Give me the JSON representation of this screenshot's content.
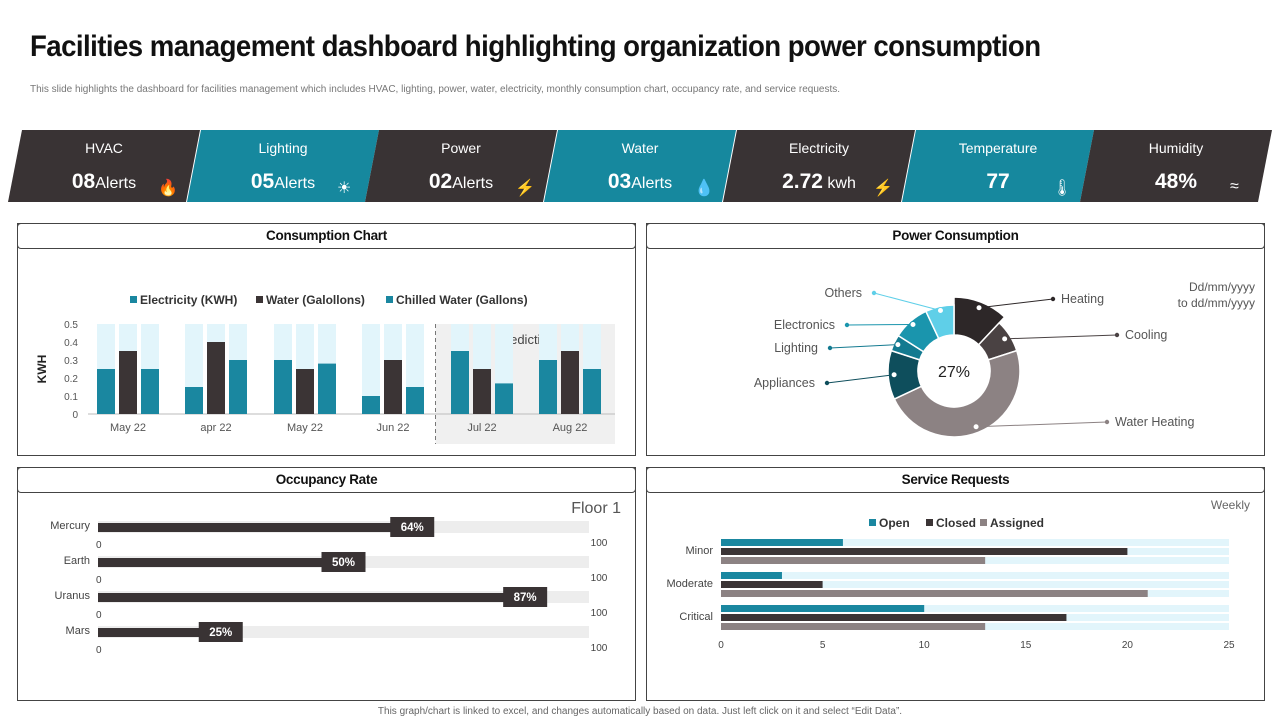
{
  "header": {
    "title": "Facilities management dashboard highlighting organization power consumption",
    "subtitle": "This slide highlights the dashboard for facilities management  which includes HVAC, lighting,  power, water, electricity, monthly consumption chart, occupancy rate, and service requests."
  },
  "kpis": [
    {
      "label": "HVAC",
      "value": "08",
      "unit": "Alerts",
      "icon": "flame-icon",
      "color": "#393334"
    },
    {
      "label": "Lighting",
      "value": "05",
      "unit": "Alerts",
      "icon": "bulb-icon",
      "color": "#16889e"
    },
    {
      "label": "Power",
      "value": "02",
      "unit": "Alerts",
      "icon": "bolt-icon",
      "color": "#393334"
    },
    {
      "label": "Water",
      "value": "03",
      "unit": "Alerts",
      "icon": "water-drops-icon",
      "color": "#16889e"
    },
    {
      "label": "Electricity",
      "value": "2.72",
      "unit": "kwh",
      "icon": "bolt-icon",
      "color": "#393334"
    },
    {
      "label": "Temperature",
      "value": "77",
      "unit": "",
      "icon": "thermometer-icon",
      "color": "#16889e"
    },
    {
      "label": "Humidity",
      "value": "48%",
      "unit": "",
      "icon": "waves-icon",
      "color": "#393334"
    }
  ],
  "panels": {
    "consumption": "Consumption Chart",
    "power": "Power Consumption",
    "occupancy": "Occupancy Rate",
    "service": "Service Requests"
  },
  "chart_data": [
    {
      "type": "bar",
      "title": "Consumption Chart",
      "categories": [
        "May 22",
        "apr 22",
        "May 22",
        "Jun 22",
        "Jul 22",
        "Aug 22"
      ],
      "series": [
        {
          "name": "Electricity (KWH)",
          "values": [
            0.25,
            0.15,
            0.3,
            0.1,
            0.35,
            0.3
          ],
          "color": "#1a87a0"
        },
        {
          "name": "Water (Galollons)",
          "values": [
            0.35,
            0.4,
            0.25,
            0.3,
            0.25,
            0.35
          ],
          "color": "#3b3435"
        },
        {
          "name": "Chilled Water (Gallons)",
          "values": [
            0.25,
            0.3,
            0.28,
            0.15,
            0.17,
            0.25
          ],
          "color": "#1a87a0"
        }
      ],
      "background_max": 0.5,
      "ylabel": "KWH",
      "ylim": [
        0,
        0.5
      ],
      "yticks": [
        "0",
        "0.1",
        "0.2",
        "0.3",
        "0.4",
        "0.5"
      ],
      "prediction_label": "Prediction",
      "prediction_start_index": 4
    },
    {
      "type": "pie",
      "title": "Power Consumption",
      "date_range": [
        "Dd/mm/yyyy",
        "to dd/mm/yyyy"
      ],
      "center_label": "27%",
      "slices": [
        {
          "label": "Heating",
          "value": 12,
          "color": "#2d2728"
        },
        {
          "label": "Cooling",
          "value": 8,
          "color": "#4a4243"
        },
        {
          "label": "Water Heating",
          "value": 48,
          "color": "#8c8283"
        },
        {
          "label": "Appliances",
          "value": 12,
          "color": "#0e4e5c"
        },
        {
          "label": "Lighting",
          "value": 4,
          "color": "#137a90"
        },
        {
          "label": "Electronics",
          "value": 9,
          "color": "#1a95ad"
        },
        {
          "label": "Others",
          "value": 7,
          "color": "#5fcfe8"
        }
      ]
    },
    {
      "type": "bar",
      "title": "Occupancy Rate",
      "subtitle": "Floor 1",
      "categories": [
        "Mercury",
        "Earth",
        "Uranus",
        "Mars"
      ],
      "values": [
        64,
        50,
        87,
        25
      ],
      "value_labels": [
        "64%",
        "50%",
        "87%",
        "25%"
      ],
      "axis_min_label": "0",
      "axis_max_label": "100",
      "xlim": [
        0,
        100
      ]
    },
    {
      "type": "bar",
      "title": "Service Requests",
      "subtitle": "Weekly",
      "categories": [
        "Minor",
        "Moderate",
        "Critical"
      ],
      "series": [
        {
          "name": "Open",
          "values": [
            6,
            3,
            10
          ],
          "color": "#1a87a0"
        },
        {
          "name": "Closed",
          "values": [
            20,
            5,
            17
          ],
          "color": "#3b3435"
        },
        {
          "name": "Assigned",
          "values": [
            13,
            21,
            13
          ],
          "color": "#8c8283"
        }
      ],
      "xticks": [
        "0",
        "5",
        "10",
        "15",
        "20",
        "25"
      ],
      "xlim": [
        0,
        25
      ]
    }
  ],
  "footer": "This graph/chart is linked to excel, and changes automatically based on data. Just left click on it and select “Edit Data”."
}
